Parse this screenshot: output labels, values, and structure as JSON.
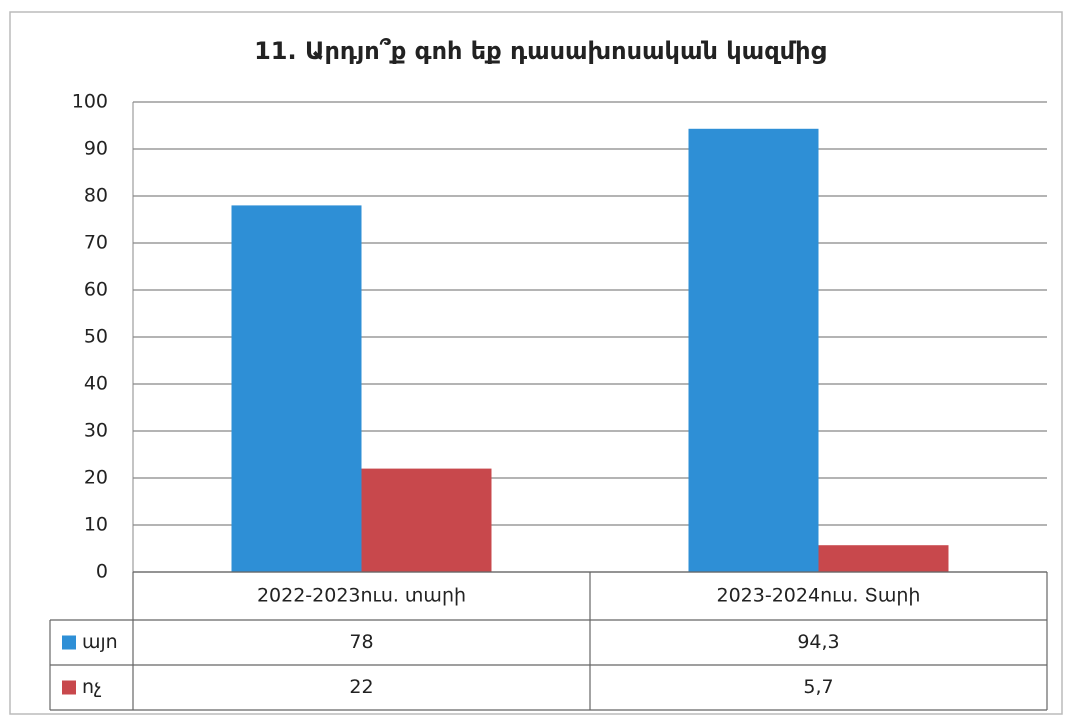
{
  "chart_data": {
    "type": "bar",
    "title": "11. Արդյո՞ք գոհ եք դասախոսական կազմից",
    "categories": [
      "2022-2023ուս. տարի",
      "2023-2024ուս. Տարի"
    ],
    "series": [
      {
        "name": "այո",
        "color": "#2e8fd6",
        "values": [
          78,
          94.3
        ],
        "value_labels": [
          "78",
          "94,3"
        ]
      },
      {
        "name": "ոչ",
        "color": "#c8484c",
        "values": [
          22,
          5.7
        ],
        "value_labels": [
          "22",
          "5,7"
        ]
      }
    ],
    "ylim": [
      0,
      100
    ],
    "yticks": [
      0,
      10,
      20,
      30,
      40,
      50,
      60,
      70,
      80,
      90,
      100
    ],
    "grid": true
  }
}
